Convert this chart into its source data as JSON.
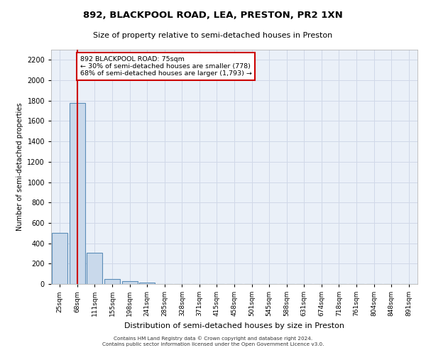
{
  "title": "892, BLACKPOOL ROAD, LEA, PRESTON, PR2 1XN",
  "subtitle": "Size of property relative to semi-detached houses in Preston",
  "xlabel": "Distribution of semi-detached houses by size in Preston",
  "ylabel": "Number of semi-detached properties",
  "bins": [
    "25sqm",
    "68sqm",
    "111sqm",
    "155sqm",
    "198sqm",
    "241sqm",
    "285sqm",
    "328sqm",
    "371sqm",
    "415sqm",
    "458sqm",
    "501sqm",
    "545sqm",
    "588sqm",
    "631sqm",
    "674sqm",
    "718sqm",
    "761sqm",
    "804sqm",
    "848sqm",
    "891sqm"
  ],
  "values": [
    500,
    1780,
    310,
    50,
    30,
    15,
    0,
    0,
    0,
    0,
    0,
    0,
    0,
    0,
    0,
    0,
    0,
    0,
    0,
    0,
    0
  ],
  "bar_color": "#c9d9eb",
  "bar_edge_color": "#5b8db8",
  "bar_linewidth": 0.8,
  "red_line_x": 1.0,
  "annotation_text": "892 BLACKPOOL ROAD: 75sqm\n← 30% of semi-detached houses are smaller (778)\n68% of semi-detached houses are larger (1,793) →",
  "annotation_box_color": "#ffffff",
  "annotation_border_color": "#cc0000",
  "ylim": [
    0,
    2300
  ],
  "yticks": [
    0,
    200,
    400,
    600,
    800,
    1000,
    1200,
    1400,
    1600,
    1800,
    2000,
    2200
  ],
  "grid_color": "#d0d8e8",
  "background_color": "#eaf0f8",
  "footer_line1": "Contains HM Land Registry data © Crown copyright and database right 2024.",
  "footer_line2": "Contains public sector information licensed under the Open Government Licence v3.0."
}
